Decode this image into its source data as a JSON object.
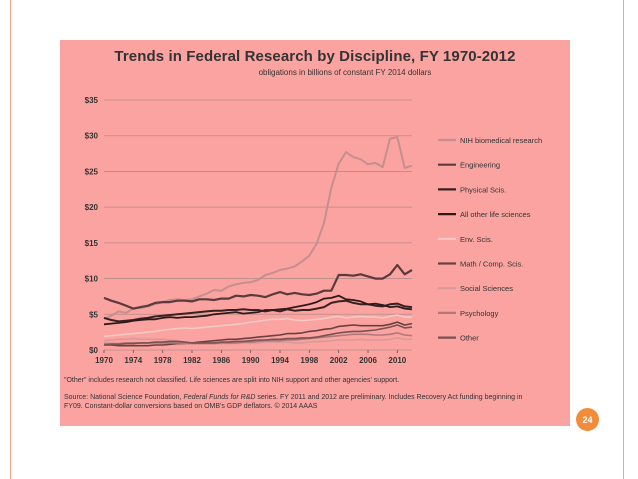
{
  "slide": {
    "page_number": "24",
    "accent_color": "#f28c3a",
    "panel_color": "#fba3a0"
  },
  "chart_data": {
    "type": "line",
    "title": "Trends in Federal Research by Discipline, FY 1970-2012",
    "subtitle": "obligations in billions of constant FY 2014 dollars",
    "x": [
      1970,
      1971,
      1972,
      1973,
      1974,
      1975,
      1976,
      1977,
      1978,
      1979,
      1980,
      1981,
      1982,
      1983,
      1984,
      1985,
      1986,
      1987,
      1988,
      1989,
      1990,
      1991,
      1992,
      1993,
      1994,
      1995,
      1996,
      1997,
      1998,
      1999,
      2000,
      2001,
      2002,
      2003,
      2004,
      2005,
      2006,
      2007,
      2008,
      2009,
      2010,
      2011,
      2012
    ],
    "xticks": [
      "1970",
      "1974",
      "1978",
      "1982",
      "1986",
      "1990",
      "1994",
      "1998",
      "2002",
      "2006",
      "2010"
    ],
    "yticks": [
      "$0",
      "$5",
      "$10",
      "$15",
      "$20",
      "$25",
      "$30",
      "$35"
    ],
    "ylim": [
      0,
      35
    ],
    "legend_position": "right",
    "grid": "horizontal",
    "series": [
      {
        "name": "NIH biomedical research",
        "color": "#c48f8f",
        "width": 2,
        "values": [
          4.4,
          4.8,
          5.4,
          5.2,
          5.8,
          5.9,
          6.1,
          6.4,
          6.7,
          7.0,
          7.1,
          7.0,
          7.1,
          7.5,
          7.9,
          8.4,
          8.3,
          8.9,
          9.2,
          9.4,
          9.5,
          9.8,
          10.5,
          10.8,
          11.2,
          11.4,
          11.7,
          12.4,
          13.2,
          14.9,
          17.8,
          22.7,
          26.1,
          27.7,
          27.0,
          26.7,
          26.0,
          26.2,
          25.6,
          29.6,
          29.8,
          25.5,
          25.8
        ]
      },
      {
        "name": "Engineering",
        "color": "#5a3a3a",
        "width": 2.2,
        "values": [
          7.3,
          6.9,
          6.6,
          6.2,
          5.8,
          6.0,
          6.2,
          6.6,
          6.7,
          6.7,
          6.9,
          6.9,
          6.8,
          7.1,
          7.1,
          7.0,
          7.2,
          7.2,
          7.6,
          7.5,
          7.7,
          7.6,
          7.4,
          7.8,
          8.1,
          7.8,
          8.0,
          7.8,
          7.7,
          7.9,
          8.3,
          8.3,
          10.5,
          10.5,
          10.4,
          10.6,
          10.3,
          10.0,
          10.0,
          10.6,
          11.9,
          10.6,
          11.2
        ]
      },
      {
        "name": "Physical Scis.",
        "color": "#3a2020",
        "width": 2,
        "values": [
          4.5,
          4.2,
          4.0,
          4.1,
          4.2,
          4.4,
          4.5,
          4.7,
          4.8,
          4.9,
          5.0,
          5.1,
          5.2,
          5.3,
          5.4,
          5.5,
          5.5,
          5.6,
          5.6,
          5.7,
          5.6,
          5.6,
          5.4,
          5.6,
          5.4,
          5.7,
          5.5,
          5.6,
          5.6,
          5.8,
          6.0,
          6.6,
          6.8,
          6.9,
          6.6,
          6.4,
          6.4,
          6.2,
          6.1,
          6.4,
          6.5,
          6.1,
          6.0
        ]
      },
      {
        "name": "All other life sciences",
        "color": "#2e1a1a",
        "width": 1.8,
        "values": [
          3.6,
          3.7,
          3.8,
          3.9,
          4.1,
          4.2,
          4.3,
          4.3,
          4.5,
          4.6,
          4.5,
          4.6,
          4.6,
          4.7,
          4.8,
          5.0,
          5.1,
          5.2,
          5.3,
          5.1,
          5.2,
          5.3,
          5.6,
          5.6,
          5.7,
          5.8,
          6.0,
          6.2,
          6.4,
          6.7,
          7.2,
          7.3,
          7.6,
          7.1,
          7.0,
          6.8,
          6.4,
          6.5,
          6.3,
          6.0,
          6.1,
          5.8,
          5.7
        ]
      },
      {
        "name": "Env. Scis.",
        "color": "#f2c9c5",
        "width": 1.6,
        "values": [
          1.9,
          2.0,
          2.1,
          2.2,
          2.3,
          2.4,
          2.5,
          2.6,
          2.8,
          2.9,
          3.0,
          3.1,
          3.0,
          3.1,
          3.2,
          3.3,
          3.4,
          3.5,
          3.6,
          3.7,
          3.9,
          4.0,
          4.2,
          4.3,
          4.3,
          4.4,
          4.2,
          4.1,
          4.2,
          4.3,
          4.4,
          4.6,
          4.7,
          4.5,
          4.6,
          4.7,
          4.6,
          4.6,
          4.5,
          4.7,
          4.9,
          4.6,
          4.6
        ]
      },
      {
        "name": "Math / Comp. Scis.",
        "color": "#6a4040",
        "width": 1.6,
        "values": [
          0.7,
          0.7,
          0.6,
          0.6,
          0.6,
          0.6,
          0.6,
          0.7,
          0.7,
          0.8,
          0.9,
          0.9,
          1.0,
          1.1,
          1.2,
          1.3,
          1.4,
          1.5,
          1.5,
          1.6,
          1.7,
          1.8,
          1.9,
          2.0,
          2.1,
          2.3,
          2.3,
          2.4,
          2.6,
          2.7,
          2.9,
          3.0,
          3.3,
          3.4,
          3.5,
          3.4,
          3.4,
          3.4,
          3.4,
          3.6,
          3.9,
          3.5,
          3.7
        ]
      },
      {
        "name": "Social Sciences",
        "color": "#d89a98",
        "width": 1.6,
        "values": [
          1.3,
          1.4,
          1.5,
          1.5,
          1.6,
          1.5,
          1.5,
          1.5,
          1.5,
          1.4,
          1.3,
          1.1,
          0.9,
          0.9,
          0.9,
          0.9,
          0.9,
          0.9,
          0.9,
          1.0,
          1.0,
          1.0,
          1.1,
          1.1,
          1.1,
          1.1,
          1.0,
          1.0,
          1.1,
          1.2,
          1.2,
          1.3,
          1.4,
          1.4,
          1.4,
          1.5,
          1.4,
          1.4,
          1.4,
          1.5,
          1.7,
          1.5,
          1.5
        ]
      },
      {
        "name": "Psychology",
        "color": "#b07878",
        "width": 1.6,
        "values": [
          0.9,
          0.9,
          0.9,
          1.0,
          1.0,
          1.0,
          1.0,
          1.0,
          1.0,
          1.0,
          1.0,
          0.9,
          0.9,
          0.9,
          0.9,
          0.9,
          1.0,
          1.0,
          1.0,
          1.1,
          1.1,
          1.2,
          1.3,
          1.3,
          1.3,
          1.4,
          1.4,
          1.5,
          1.6,
          1.7,
          1.8,
          1.9,
          2.0,
          2.1,
          2.2,
          2.2,
          2.2,
          2.1,
          2.1,
          2.2,
          2.4,
          2.1,
          2.0
        ]
      },
      {
        "name": "Other",
        "color": "#7a5252",
        "width": 1.6,
        "values": [
          0.7,
          0.8,
          0.8,
          0.9,
          0.9,
          1.0,
          1.0,
          1.1,
          1.1,
          1.2,
          1.2,
          1.1,
          1.0,
          1.0,
          1.0,
          1.0,
          1.1,
          1.1,
          1.2,
          1.2,
          1.3,
          1.4,
          1.4,
          1.5,
          1.5,
          1.6,
          1.6,
          1.7,
          1.7,
          1.8,
          2.0,
          2.2,
          2.4,
          2.5,
          2.6,
          2.6,
          2.7,
          2.8,
          3.0,
          3.2,
          3.5,
          3.1,
          3.2
        ]
      }
    ]
  },
  "notes": {
    "footnote": "\"Other\" includes research not classified. Life sciences are split into NIH support and other agencies' support.",
    "source_prefix": "Source: National Science Foundation, ",
    "source_italic": "Federal Funds for R&D",
    "source_suffix": " series. FY 2011 and 2012 are preliminary. Includes Recovery Act funding beginning in FY09. Constant-dollar conversions based on OMB's GDP deflators. © 2014 AAAS"
  }
}
